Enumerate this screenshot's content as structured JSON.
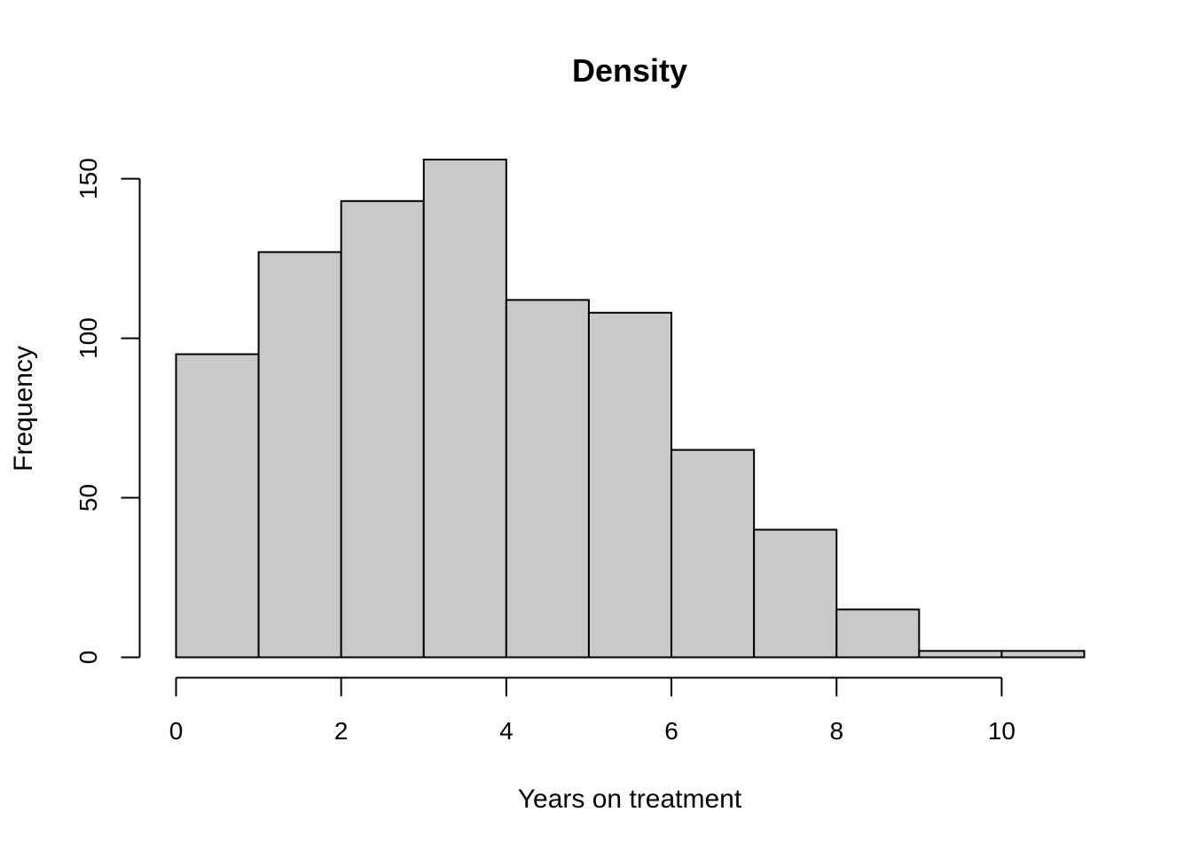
{
  "chart_data": {
    "type": "bar",
    "title": "Density",
    "xlabel": "Years on treatment",
    "ylabel": "Frequency",
    "bins": [
      {
        "start": 0,
        "end": 1,
        "value": 95
      },
      {
        "start": 1,
        "end": 2,
        "value": 127
      },
      {
        "start": 2,
        "end": 3,
        "value": 143
      },
      {
        "start": 3,
        "end": 4,
        "value": 156
      },
      {
        "start": 4,
        "end": 5,
        "value": 112
      },
      {
        "start": 5,
        "end": 6,
        "value": 108
      },
      {
        "start": 6,
        "end": 7,
        "value": 65
      },
      {
        "start": 7,
        "end": 8,
        "value": 40
      },
      {
        "start": 8,
        "end": 9,
        "value": 15
      },
      {
        "start": 9,
        "end": 10,
        "value": 2
      },
      {
        "start": 10,
        "end": 11,
        "value": 2
      }
    ],
    "x_ticks": [
      "0",
      "2",
      "4",
      "6",
      "8",
      "10"
    ],
    "y_ticks": [
      "0",
      "50",
      "100",
      "150"
    ],
    "xlim": [
      0,
      11
    ],
    "ylim": [
      0,
      156
    ],
    "x_axis_range": [
      0,
      10
    ],
    "y_axis_range": [
      0,
      150
    ],
    "grid": false,
    "legend": "none",
    "bar_color": "#c9c9c9",
    "edge_color": "#000000"
  }
}
